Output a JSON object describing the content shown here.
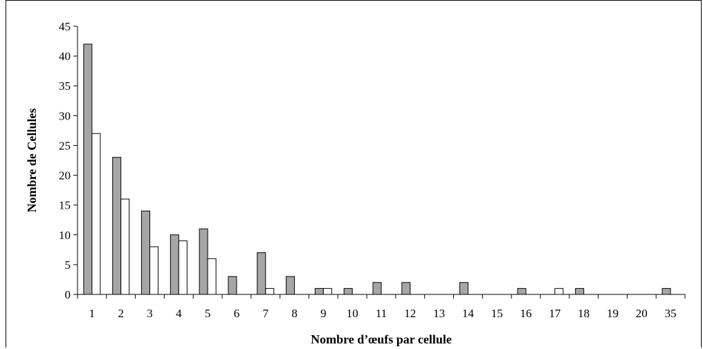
{
  "chart_data": {
    "type": "bar",
    "xlabel": "Nombre d’œufs par cellule",
    "ylabel": "Nombre de Cellules",
    "ylim": [
      0,
      45
    ],
    "yticks": [
      0,
      5,
      10,
      15,
      20,
      25,
      30,
      35,
      40,
      45
    ],
    "grid": false,
    "legend": "none",
    "categories": [
      "1",
      "2",
      "3",
      "4",
      "5",
      "6",
      "7",
      "8",
      "9",
      "10",
      "11",
      "12",
      "13",
      "14",
      "15",
      "16",
      "17",
      "18",
      "19",
      "20",
      "35"
    ],
    "series": [
      {
        "color": "#a6a6a6",
        "values": [
          42,
          23,
          14,
          10,
          11,
          3,
          7,
          3,
          1,
          1,
          2,
          2,
          0,
          2,
          0,
          1,
          0,
          1,
          0,
          0,
          1
        ]
      },
      {
        "color": "#ffffff",
        "values": [
          27,
          16,
          8,
          9,
          6,
          0,
          1,
          0,
          1,
          0,
          0,
          0,
          0,
          0,
          0,
          0,
          1,
          0,
          0,
          0,
          0
        ]
      }
    ]
  }
}
